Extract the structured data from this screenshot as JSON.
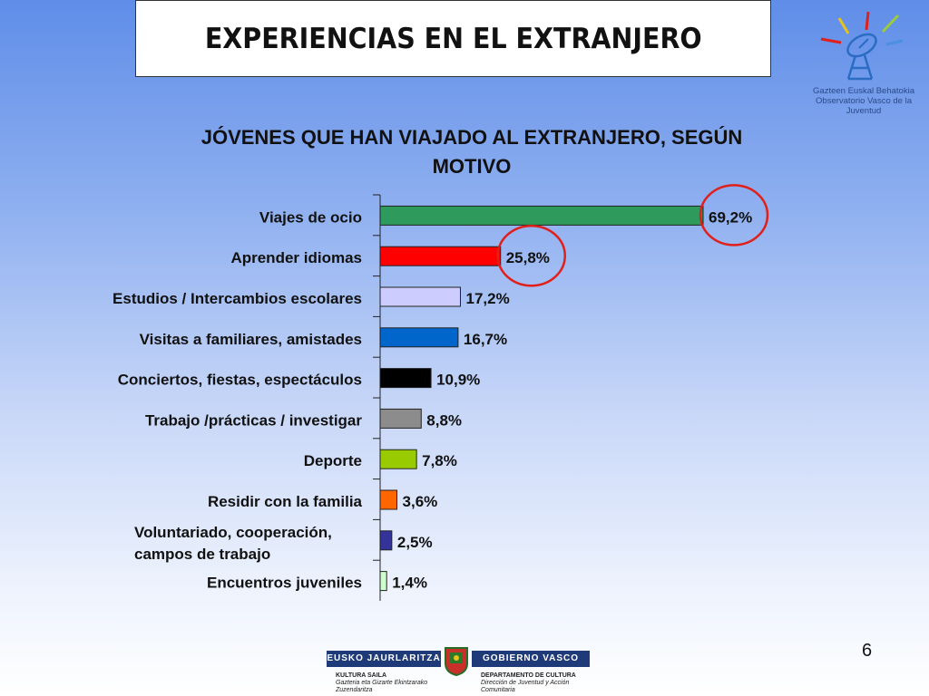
{
  "slide": {
    "title": "EXPERIENCIAS EN EL EXTRANJERO",
    "page_number": "6"
  },
  "logo": {
    "line1": "Gazteen Euskal Behatokia",
    "line2": "Observatorio Vasco de la Juventud"
  },
  "footer": {
    "left_bar": "EUSKO JAURLARITZA",
    "right_bar": "GOBIERNO VASCO",
    "left_dept": "KULTURA SAILA",
    "left_sub1": "Gazteria eta Gizarte Ekintzarako",
    "left_sub2": "Zuzendaritza",
    "right_dept": "DEPARTAMENTO DE CULTURA",
    "right_sub1": "Dirección de Juventud y Acción",
    "right_sub2": "Comunitaria"
  },
  "chart_data": {
    "type": "bar",
    "orientation": "horizontal",
    "title_line1": "JÓVENES QUE HAN VIAJADO AL EXTRANJERO, SEGÚN",
    "title_line2": "MOTIVO",
    "xlim": [
      0,
      100
    ],
    "grid": false,
    "categories": [
      "Viajes de ocio",
      "Aprender idiomas",
      "Estudios / Intercambios escolares",
      "Visitas a familiares, amistades",
      "Conciertos, fiestas, espectáculos",
      "Trabajo /prácticas / investigar",
      "Deporte",
      "Residir con la familia",
      "Voluntariado, cooperación, campos de trabajo",
      "Encuentros juveniles"
    ],
    "values": [
      69.2,
      25.8,
      17.2,
      16.7,
      10.9,
      8.8,
      7.8,
      3.6,
      2.5,
      1.4
    ],
    "value_labels": [
      "69,2%",
      "25,8%",
      "17,2%",
      "16,7%",
      "10,9%",
      "8,8%",
      "7,8%",
      "3,6%",
      "2,5%",
      "1,4%"
    ],
    "colors": [
      "#2e9a5c",
      "#ff0000",
      "#ccccff",
      "#0066cc",
      "#000000",
      "#8c8c8c",
      "#99cc00",
      "#ff6600",
      "#333399",
      "#ccffcc"
    ],
    "highlight_color": "#e0201b",
    "highlighted": [
      "Viajes de ocio",
      "Aprender idiomas"
    ]
  }
}
